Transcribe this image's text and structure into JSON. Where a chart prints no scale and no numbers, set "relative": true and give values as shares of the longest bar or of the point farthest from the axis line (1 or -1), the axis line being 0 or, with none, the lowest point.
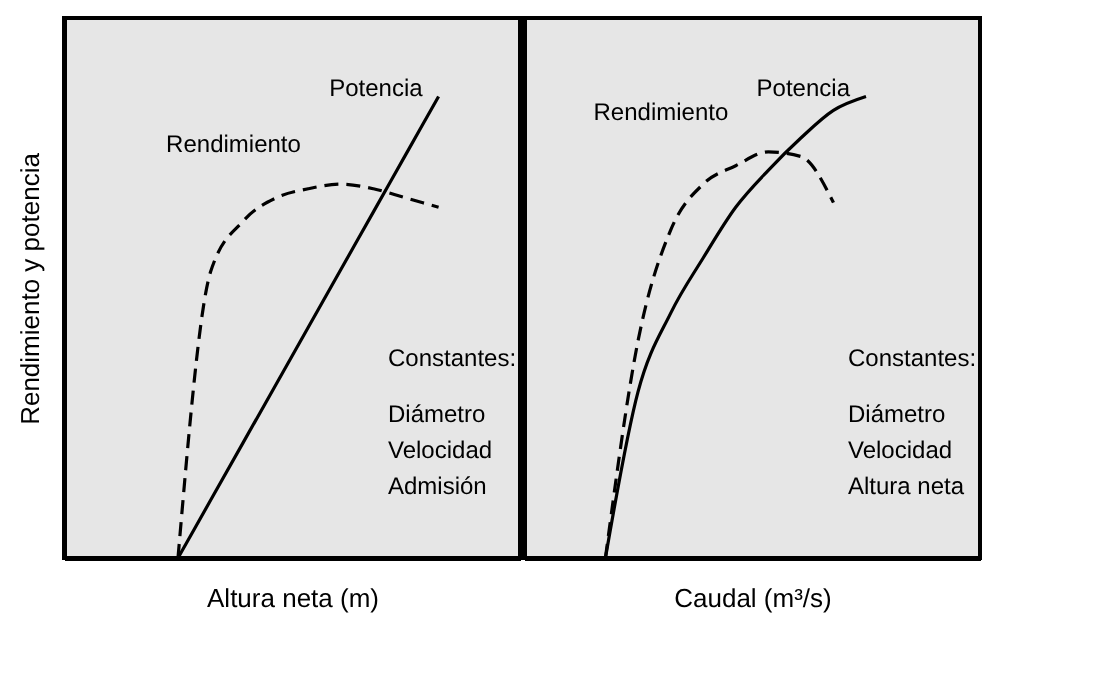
{
  "chart_data": [
    {
      "type": "line",
      "relative": true,
      "xlabel": "Altura neta (m)",
      "ylabel": "Rendimiento y potencia",
      "tick_labels": false,
      "grid": false,
      "categories": [
        null,
        null,
        null,
        null,
        null,
        null,
        null,
        null,
        null,
        null,
        null,
        null,
        null,
        null
      ],
      "series": [
        {
          "name": "Rendimiento",
          "color": "#000000",
          "line_style": "dashed",
          "values": [
            null,
            null,
            null,
            0,
            0.62,
            0.73,
            0.78,
            0.8,
            0.81,
            0.8,
            0.78,
            0.76,
            null,
            null
          ]
        },
        {
          "name": "Potencia",
          "color": "#000000",
          "line_style": "solid",
          "values": [
            null,
            null,
            null,
            0,
            0.125,
            0.25,
            0.375,
            0.5,
            0.625,
            0.75,
            0.875,
            1,
            null,
            null
          ]
        }
      ],
      "annotations": [
        "Constantes:",
        "Diámetro",
        "Velocidad",
        "Admisión"
      ]
    },
    {
      "type": "line",
      "relative": true,
      "xlabel": "Caudal (m³/s)",
      "tick_labels": false,
      "grid": false,
      "categories": [
        null,
        null,
        null,
        null,
        null,
        null,
        null,
        null,
        null,
        null,
        null,
        null,
        null,
        null
      ],
      "series": [
        {
          "name": "Rendimiento",
          "color": "#000000",
          "line_style": "dashed",
          "values": [
            null,
            null,
            0,
            0.47,
            0.71,
            0.81,
            0.85,
            0.88,
            0.87,
            0.77,
            null,
            null,
            null,
            null
          ]
        },
        {
          "name": "Potencia",
          "color": "#000000",
          "line_style": "solid",
          "values": [
            null,
            null,
            0,
            0.36,
            0.53,
            0.65,
            0.76,
            0.84,
            0.91,
            0.97,
            1,
            null,
            null,
            null
          ]
        }
      ],
      "annotations": [
        "Constantes:",
        "Diámetro",
        "Velocidad",
        "Altura neta"
      ]
    }
  ]
}
